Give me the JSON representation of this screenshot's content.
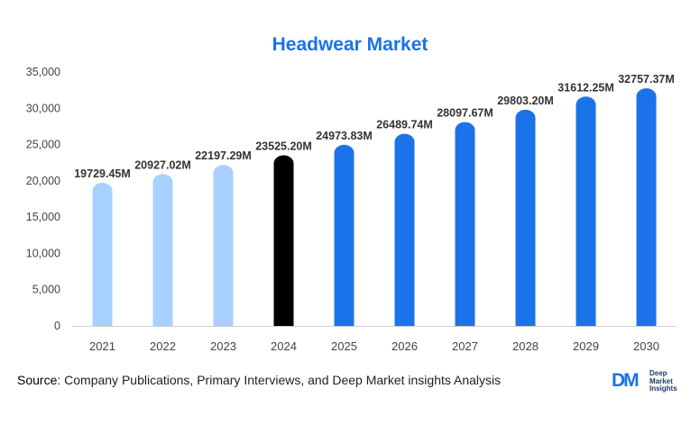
{
  "chart_data": {
    "type": "bar",
    "title": "Headwear Market",
    "categories": [
      "2021",
      "2022",
      "2023",
      "2024",
      "2025",
      "2026",
      "2027",
      "2028",
      "2029",
      "2030"
    ],
    "values": [
      19729.45,
      20927.02,
      22197.29,
      23525.2,
      24973.83,
      26489.74,
      28097.67,
      29803.2,
      31612.25,
      32757.37
    ],
    "data_labels": [
      "19729.45M",
      "20927.02M",
      "22197.29M",
      "23525.20M",
      "24973.83M",
      "26489.74M",
      "28097.67M",
      "29803.20M",
      "31612.25M",
      "32757.37M"
    ],
    "bar_colors": [
      "#a8d1ff",
      "#a8d1ff",
      "#a8d1ff",
      "#000000",
      "#1a73e8",
      "#1a73e8",
      "#1a73e8",
      "#1a73e8",
      "#1a73e8",
      "#1a73e8"
    ],
    "ylim": [
      0,
      35000
    ],
    "yticks": [
      0,
      5000,
      10000,
      15000,
      20000,
      25000,
      30000,
      35000
    ],
    "ytick_labels": [
      "0",
      "5,000",
      "10,000",
      "15,000",
      "20,000",
      "25,000",
      "30,000",
      "35,000"
    ],
    "xlabel": "",
    "ylabel": "",
    "grid": false,
    "legend": "none"
  },
  "footer": {
    "source_label": "Source",
    "source_text": ": Company Publications, Primary Interviews, and Deep Market insights Analysis"
  },
  "logo": {
    "mark": "DM",
    "line1": "Deep",
    "line2": "Market",
    "line3": "Insights"
  },
  "colors": {
    "accent": "#1a73e8",
    "history": "#a8d1ff",
    "base_year": "#000000"
  }
}
